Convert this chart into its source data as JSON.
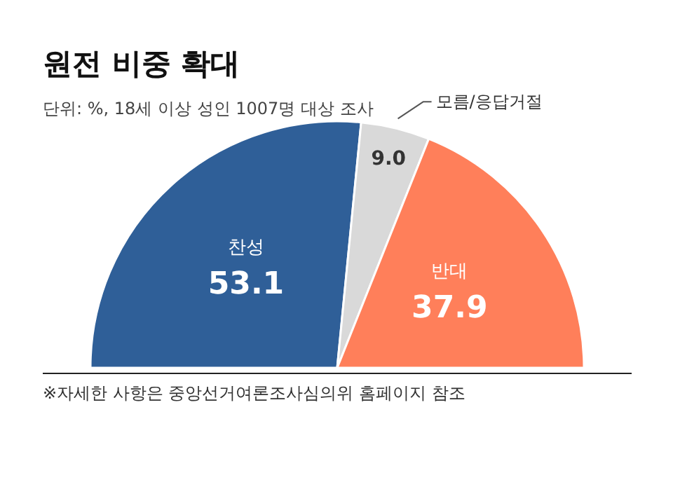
{
  "chart_data": {
    "type": "pie",
    "title": "원전 비중 확대",
    "subtitle": "단위: %, 18세 이상 성인 1007명 대상 조사",
    "categories": [
      "찬성",
      "모름/응답거절",
      "반대"
    ],
    "values": [
      53.1,
      9.0,
      37.9
    ],
    "colors": [
      "#2f5f98",
      "#d9d9d9",
      "#ff7f5a"
    ],
    "value_labels": [
      "53.1",
      "9.0",
      "37.9"
    ],
    "annotations": [
      "※자세한 사항은 중앙선거여론조사심의위 홈페이지 참조"
    ]
  }
}
